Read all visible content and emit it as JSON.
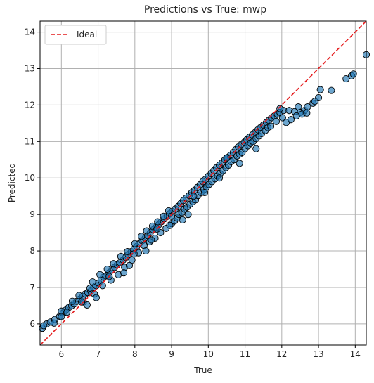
{
  "chart_data": {
    "type": "scatter",
    "title": "Predictions vs True: mwp",
    "xlabel": "True",
    "ylabel": "Predicted",
    "xlim": [
      5.42,
      14.3
    ],
    "ylim": [
      5.42,
      14.3
    ],
    "xticks": [
      6,
      7,
      8,
      9,
      10,
      11,
      12,
      13,
      14
    ],
    "yticks": [
      6,
      7,
      8,
      9,
      10,
      11,
      12,
      13,
      14
    ],
    "grid": true,
    "legend": {
      "placement": "top-left",
      "entries": [
        {
          "label": "Ideal",
          "style": "dashed",
          "color": "#e41a1c"
        }
      ]
    },
    "ideal_line": {
      "from": [
        5.42,
        5.42
      ],
      "to": [
        14.3,
        14.3
      ]
    },
    "colors": {
      "point_fill": "#1f77b4",
      "point_edge": "#000000",
      "ideal": "#e41a1c",
      "grid": "#b0b0b0"
    },
    "series": [
      {
        "points": [
          [
            5.48,
            5.88
          ],
          [
            5.6,
            6.0
          ],
          [
            5.7,
            6.05
          ],
          [
            5.82,
            6.12
          ],
          [
            5.95,
            6.2
          ],
          [
            6.05,
            6.3
          ],
          [
            6.12,
            6.38
          ],
          [
            6.2,
            6.45
          ],
          [
            6.28,
            6.5
          ],
          [
            6.35,
            6.55
          ],
          [
            6.42,
            6.62
          ],
          [
            6.5,
            6.68
          ],
          [
            6.58,
            6.75
          ],
          [
            6.65,
            6.82
          ],
          [
            6.72,
            6.86
          ],
          [
            6.8,
            6.9
          ],
          [
            6.88,
            7.0
          ],
          [
            6.95,
            7.05
          ],
          [
            7.02,
            7.12
          ],
          [
            7.08,
            7.2
          ],
          [
            7.15,
            7.28
          ],
          [
            7.22,
            7.32
          ],
          [
            7.3,
            7.4
          ],
          [
            7.38,
            7.48
          ],
          [
            7.45,
            7.55
          ],
          [
            7.52,
            7.62
          ],
          [
            7.6,
            7.68
          ],
          [
            7.68,
            7.75
          ],
          [
            7.75,
            7.82
          ],
          [
            7.82,
            7.9
          ],
          [
            7.9,
            7.98
          ],
          [
            7.98,
            8.05
          ],
          [
            8.05,
            8.12
          ],
          [
            8.12,
            8.2
          ],
          [
            8.2,
            8.28
          ],
          [
            8.28,
            8.35
          ],
          [
            8.35,
            8.42
          ],
          [
            8.42,
            8.5
          ],
          [
            8.5,
            8.58
          ],
          [
            8.58,
            8.65
          ],
          [
            8.65,
            8.72
          ],
          [
            8.72,
            8.8
          ],
          [
            8.8,
            8.88
          ],
          [
            8.88,
            8.95
          ],
          [
            8.95,
            9.02
          ],
          [
            9.02,
            9.08
          ],
          [
            9.1,
            9.15
          ],
          [
            9.18,
            9.22
          ],
          [
            9.25,
            9.3
          ],
          [
            9.32,
            9.38
          ],
          [
            9.4,
            9.45
          ],
          [
            9.48,
            9.52
          ],
          [
            9.55,
            9.6
          ],
          [
            9.62,
            9.66
          ],
          [
            9.7,
            9.74
          ],
          [
            9.78,
            9.82
          ],
          [
            9.85,
            9.9
          ],
          [
            9.92,
            9.96
          ],
          [
            10.0,
            10.05
          ],
          [
            10.08,
            10.12
          ],
          [
            10.15,
            10.2
          ],
          [
            10.22,
            10.28
          ],
          [
            10.3,
            10.35
          ],
          [
            10.38,
            10.42
          ],
          [
            10.45,
            10.5
          ],
          [
            10.52,
            10.56
          ],
          [
            10.6,
            10.62
          ],
          [
            10.68,
            10.7
          ],
          [
            10.75,
            10.78
          ],
          [
            10.82,
            10.85
          ],
          [
            10.9,
            10.92
          ],
          [
            10.98,
            10.98
          ],
          [
            11.05,
            11.05
          ],
          [
            11.12,
            11.12
          ],
          [
            11.2,
            11.18
          ],
          [
            11.28,
            11.25
          ],
          [
            11.35,
            11.32
          ],
          [
            11.42,
            11.38
          ],
          [
            11.5,
            11.45
          ],
          [
            11.58,
            11.52
          ],
          [
            11.65,
            11.58
          ],
          [
            11.72,
            11.65
          ],
          [
            11.8,
            11.7
          ],
          [
            11.88,
            11.75
          ],
          [
            11.95,
            11.8
          ],
          [
            12.05,
            11.85
          ],
          [
            12.2,
            11.85
          ],
          [
            12.35,
            11.82
          ],
          [
            12.5,
            11.8
          ],
          [
            12.62,
            11.85
          ],
          [
            12.7,
            11.95
          ],
          [
            12.85,
            12.05
          ],
          [
            12.9,
            12.1
          ],
          [
            13.0,
            12.2
          ],
          [
            13.05,
            12.42
          ],
          [
            13.35,
            12.4
          ],
          [
            13.75,
            12.72
          ],
          [
            13.9,
            12.8
          ],
          [
            13.95,
            12.85
          ],
          [
            14.3,
            13.38
          ],
          [
            5.52,
            5.95
          ],
          [
            6.0,
            6.35
          ],
          [
            6.15,
            6.32
          ],
          [
            6.3,
            6.62
          ],
          [
            6.48,
            6.78
          ],
          [
            6.6,
            6.6
          ],
          [
            6.78,
            6.98
          ],
          [
            6.85,
            7.15
          ],
          [
            6.9,
            6.82
          ],
          [
            7.05,
            7.35
          ],
          [
            7.12,
            7.05
          ],
          [
            7.25,
            7.5
          ],
          [
            7.35,
            7.2
          ],
          [
            7.42,
            7.65
          ],
          [
            7.55,
            7.35
          ],
          [
            7.62,
            7.85
          ],
          [
            7.72,
            7.55
          ],
          [
            7.8,
            7.98
          ],
          [
            7.92,
            7.75
          ],
          [
            8.0,
            8.2
          ],
          [
            8.1,
            7.95
          ],
          [
            8.18,
            8.4
          ],
          [
            8.25,
            8.15
          ],
          [
            8.32,
            8.55
          ],
          [
            8.4,
            8.25
          ],
          [
            8.48,
            8.68
          ],
          [
            8.55,
            8.35
          ],
          [
            8.62,
            8.8
          ],
          [
            8.7,
            8.5
          ],
          [
            8.78,
            8.95
          ],
          [
            8.85,
            8.62
          ],
          [
            8.92,
            9.1
          ],
          [
            9.0,
            8.75
          ],
          [
            9.08,
            8.82
          ],
          [
            9.15,
            8.9
          ],
          [
            9.2,
            9.0
          ],
          [
            9.28,
            9.05
          ],
          [
            9.35,
            9.15
          ],
          [
            9.42,
            9.2
          ],
          [
            9.5,
            9.28
          ],
          [
            9.58,
            9.35
          ],
          [
            9.65,
            9.4
          ],
          [
            9.72,
            9.52
          ],
          [
            9.8,
            9.6
          ],
          [
            9.88,
            9.68
          ],
          [
            9.95,
            9.75
          ],
          [
            10.02,
            9.82
          ],
          [
            10.1,
            9.9
          ],
          [
            10.18,
            9.98
          ],
          [
            10.25,
            10.05
          ],
          [
            10.32,
            10.12
          ],
          [
            10.4,
            10.2
          ],
          [
            10.48,
            10.28
          ],
          [
            10.55,
            10.35
          ],
          [
            10.62,
            10.45
          ],
          [
            10.7,
            10.5
          ],
          [
            10.78,
            10.6
          ],
          [
            10.85,
            10.65
          ],
          [
            10.92,
            10.7
          ],
          [
            11.0,
            10.8
          ],
          [
            11.08,
            10.88
          ],
          [
            11.15,
            10.95
          ],
          [
            11.22,
            11.0
          ],
          [
            11.3,
            11.08
          ],
          [
            11.38,
            11.15
          ],
          [
            11.45,
            11.22
          ],
          [
            11.55,
            11.3
          ],
          [
            11.62,
            11.38
          ],
          [
            11.7,
            11.42
          ],
          [
            11.85,
            11.55
          ],
          [
            12.02,
            11.65
          ],
          [
            12.12,
            11.52
          ],
          [
            12.25,
            11.6
          ],
          [
            12.4,
            11.7
          ],
          [
            12.55,
            11.75
          ],
          [
            12.68,
            11.78
          ],
          [
            10.85,
            10.4
          ],
          [
            11.3,
            10.8
          ],
          [
            9.3,
            8.85
          ],
          [
            8.3,
            8.0
          ],
          [
            7.7,
            7.4
          ],
          [
            6.95,
            6.72
          ],
          [
            6.7,
            6.52
          ],
          [
            10.5,
            10.55
          ],
          [
            9.6,
            9.5
          ],
          [
            9.0,
            8.95
          ],
          [
            8.6,
            8.6
          ],
          [
            7.98,
            7.92
          ],
          [
            7.3,
            7.3
          ],
          [
            6.55,
            6.6
          ],
          [
            6.0,
            6.2
          ],
          [
            5.8,
            6.02
          ],
          [
            11.95,
            11.9
          ],
          [
            12.45,
            11.95
          ],
          [
            10.3,
            10.0
          ],
          [
            9.9,
            9.6
          ],
          [
            9.45,
            9.0
          ],
          [
            8.95,
            8.7
          ],
          [
            8.45,
            8.3
          ],
          [
            7.85,
            7.6
          ]
        ]
      }
    ]
  }
}
